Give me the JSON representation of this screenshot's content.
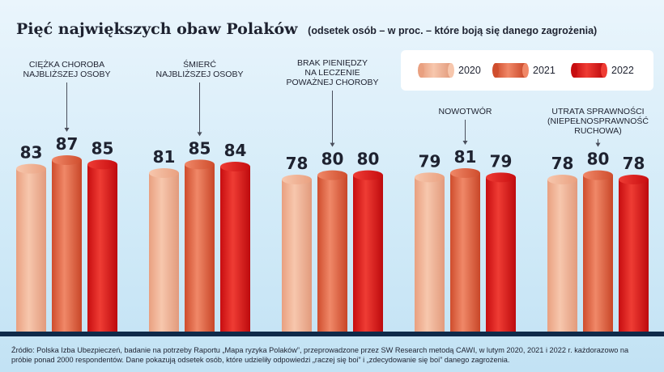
{
  "chart_data": {
    "type": "bar",
    "title": "Pięć największych obaw Polaków",
    "subtitle": "(odsetek osób – w proc. – które boją się danego zagrożenia)",
    "categories": [
      [
        "CIĘŻKA CHOROBA",
        "NAJBLIŻSZEJ OSOBY"
      ],
      [
        "ŚMIERĆ",
        "NAJBLIŻSZEJ OSOBY"
      ],
      [
        "BRAK PIENIĘDZY",
        "NA LECZENIE",
        "POWAŻNEJ CHOROBY"
      ],
      [
        "NOWOTWÓR"
      ],
      [
        "UTRATA SPRAWNOŚCI",
        "(NIEPEŁNOSPRAWNOŚĆ",
        "RUCHOWA)"
      ]
    ],
    "series": [
      {
        "name": "2020",
        "values": [
          83,
          81,
          78,
          79,
          78
        ]
      },
      {
        "name": "2021",
        "values": [
          87,
          85,
          80,
          81,
          80
        ]
      },
      {
        "name": "2022",
        "values": [
          85,
          84,
          80,
          79,
          78
        ]
      }
    ],
    "legend": "top-right",
    "grid": false
  },
  "colors": {
    "s2020": [
      "#e9a080",
      "#f7c7ad",
      "#e29a7c"
    ],
    "s2021": [
      "#cf4d2d",
      "#f08868",
      "#c84628"
    ],
    "s2022": [
      "#c70d10",
      "#ef3c34",
      "#bd0a0d"
    ],
    "leader": "#4a4f5c",
    "baseline": "#0f2a4a"
  },
  "source": "Źródło: Polska Izba Ubezpieczeń, badanie na potrzeby Raportu „Mapa ryzyka Polaków”, przeprowadzone przez SW Research metodą CAWI, w lutym 2020, 2021 i 2022 r. każdorazowo na próbie ponad 2000 respondentów. Dane pokazują odsetek osób, które udzieliły odpowiedzi „raczej się boi” i „zdecydowanie się boi” danego zagrożenia."
}
